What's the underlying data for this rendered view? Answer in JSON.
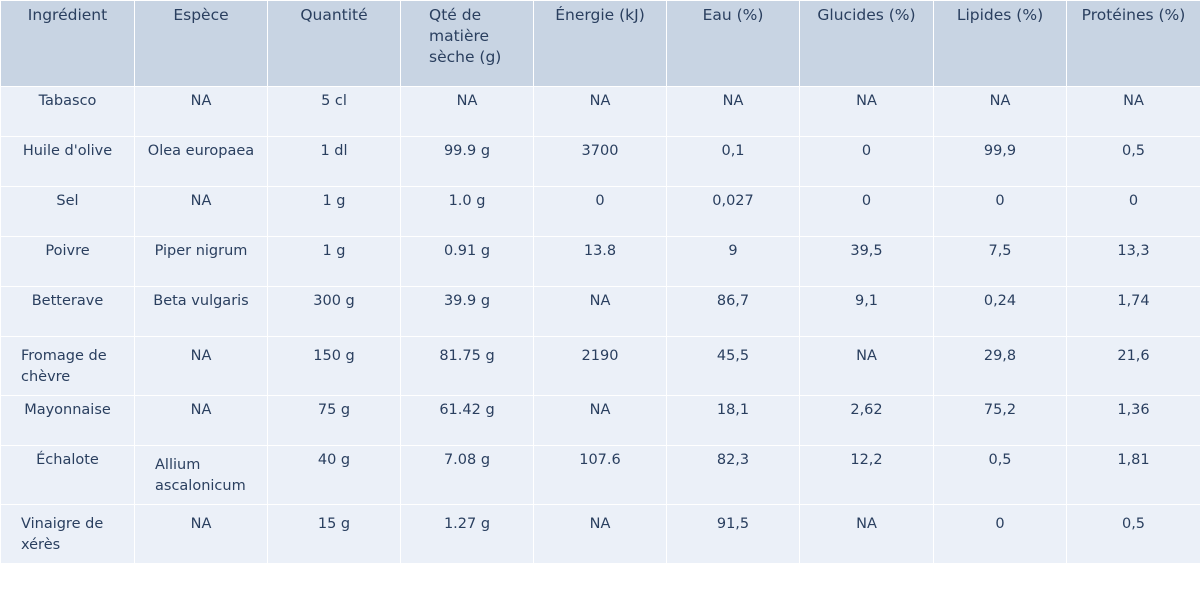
{
  "chart_data": {
    "type": "table",
    "columns": [
      "Ingrédient",
      "Espèce",
      "Quantité",
      "Qté de matière sèche (g)",
      "Énergie (kJ)",
      "Eau (%)",
      "Glucides (%)",
      "Lipides (%)",
      "Protéines (%)"
    ],
    "rows": [
      [
        "Tabasco",
        "NA",
        "5 cl",
        "NA",
        "NA",
        "NA",
        "NA",
        "NA",
        "NA"
      ],
      [
        "Huile d'olive",
        "Olea europaea",
        "1 dl",
        "99.9 g",
        "3700",
        "0,1",
        "0",
        "99,9",
        "0,5"
      ],
      [
        "Sel",
        "NA",
        "1 g",
        "1.0 g",
        "0",
        "0,027",
        "0",
        "0",
        "0"
      ],
      [
        "Poivre",
        "Piper nigrum",
        "1 g",
        "0.91 g",
        "13.8",
        "9",
        "39,5",
        "7,5",
        "13,3"
      ],
      [
        "Betterave",
        "Beta vulgaris",
        "300 g",
        "39.9 g",
        "NA",
        "86,7",
        "9,1",
        "0,24",
        "1,74"
      ],
      [
        "Fromage de chèvre",
        "NA",
        "150 g",
        "81.75 g",
        "2190",
        "45,5",
        "NA",
        "29,8",
        "21,6"
      ],
      [
        "Mayonnaise",
        "NA",
        "75 g",
        "61.42 g",
        "NA",
        "18,1",
        "2,62",
        "75,2",
        "1,36"
      ],
      [
        "Échalote",
        "Allium ascalonicum",
        "40 g",
        "7.08 g",
        "107.6",
        "82,3",
        "12,2",
        "0,5",
        "1,81"
      ],
      [
        "Vinaigre de xérès",
        "NA",
        "15 g",
        "1.27 g",
        "NA",
        "91,5",
        "NA",
        "0",
        "0,5"
      ]
    ],
    "colors": {
      "header_fill": "#c8d4e3",
      "cell_fill": "#ebf0f8",
      "line": "#ffffff",
      "font": "#2a3f5f"
    }
  }
}
